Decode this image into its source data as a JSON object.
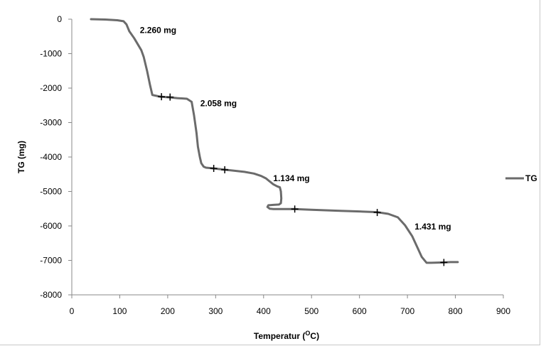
{
  "chart_data": {
    "type": "line",
    "xlabel": "Temperatur (",
    "xlabel_sup": "O",
    "xlabel_suffix": "C)",
    "ylabel": "TG (mg)",
    "xlim": [
      0,
      900
    ],
    "ylim": [
      -8000,
      0
    ],
    "xticks": [
      "0",
      "100",
      "200",
      "300",
      "400",
      "500",
      "600",
      "700",
      "800",
      "900"
    ],
    "yticks": [
      "0",
      "-1000",
      "-2000",
      "-3000",
      "-4000",
      "-5000",
      "-6000",
      "-7000",
      "-8000"
    ],
    "grid": false,
    "legend": {
      "position": "right",
      "entries": [
        "TG"
      ]
    },
    "color": "#6b6b6b",
    "series": [
      {
        "name": "TG",
        "x": [
          40,
          70,
          95,
          108,
          114,
          120,
          130,
          145,
          150,
          157,
          163,
          168,
          185,
          205,
          220,
          240,
          250,
          255,
          260,
          263,
          267,
          270,
          275,
          280,
          295,
          320,
          340,
          360,
          380,
          395,
          405,
          412,
          420,
          428,
          434,
          436,
          437,
          436,
          432,
          420,
          410,
          408,
          413,
          420,
          440,
          465,
          500,
          560,
          600,
          637,
          660,
          680,
          695,
          710,
          720,
          730,
          740,
          750,
          775,
          790,
          805
        ],
        "y": [
          0,
          -10,
          -30,
          -60,
          -150,
          -350,
          -550,
          -900,
          -1100,
          -1500,
          -1900,
          -2200,
          -2250,
          -2270,
          -2290,
          -2310,
          -2400,
          -2800,
          -3300,
          -3700,
          -4000,
          -4180,
          -4280,
          -4310,
          -4330,
          -4370,
          -4400,
          -4430,
          -4480,
          -4550,
          -4620,
          -4700,
          -4790,
          -4850,
          -4880,
          -5000,
          -5200,
          -5340,
          -5380,
          -5390,
          -5400,
          -5450,
          -5500,
          -5510,
          -5510,
          -5510,
          -5530,
          -5560,
          -5580,
          -5600,
          -5650,
          -5750,
          -5980,
          -6300,
          -6600,
          -6900,
          -7070,
          -7070,
          -7060,
          -7050,
          -7050
        ]
      }
    ],
    "markers": [
      {
        "x": 187,
        "y": -2250
      },
      {
        "x": 205,
        "y": -2260
      },
      {
        "x": 296,
        "y": -4330
      },
      {
        "x": 319,
        "y": -4370
      },
      {
        "x": 465,
        "y": -5510
      },
      {
        "x": 637,
        "y": -5610
      },
      {
        "x": 776,
        "y": -7060
      }
    ],
    "annotations": [
      {
        "text": "2.260 mg",
        "x": 142,
        "y": -400
      },
      {
        "text": "2.058 mg",
        "x": 268,
        "y": -2530
      },
      {
        "text": "1.134 mg",
        "x": 420,
        "y": -4700
      },
      {
        "text": "1.431 mg",
        "x": 715,
        "y": -6100
      }
    ]
  }
}
